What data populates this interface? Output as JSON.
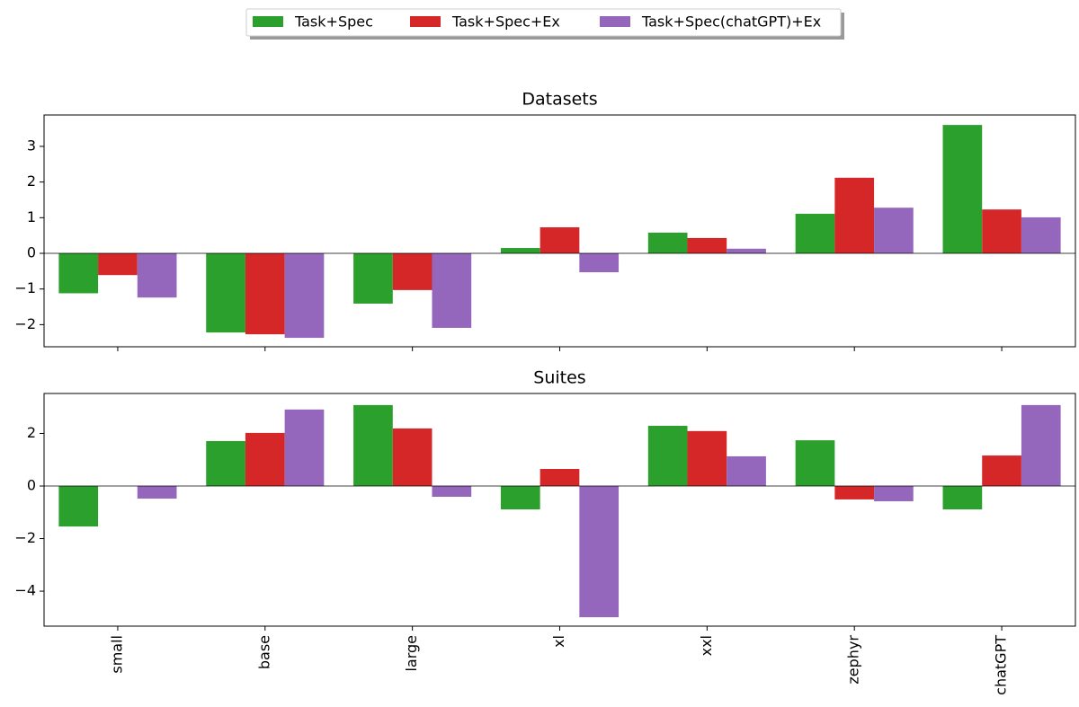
{
  "chart_data": [
    {
      "type": "bar",
      "title": "Datasets",
      "series": [
        {
          "name": "Task+Spec",
          "color": "#2ca02c",
          "values": [
            -1.12,
            -2.22,
            -1.41,
            0.15,
            0.58,
            1.11,
            3.6
          ]
        },
        {
          "name": "Task+Spec+Ex",
          "color": "#d62728",
          "values": [
            -0.61,
            -2.27,
            -1.03,
            0.73,
            0.43,
            2.12,
            1.23
          ]
        },
        {
          "name": "Task+Spec(chatGPT)+Ex",
          "color": "#9467bd",
          "values": [
            -1.24,
            -2.37,
            -2.09,
            -0.53,
            0.13,
            1.28,
            1.01
          ]
        }
      ],
      "ylim": [
        -2.62,
        3.88
      ],
      "yticks": [
        {
          "value": -2,
          "label": "−2"
        },
        {
          "value": -1,
          "label": "−1"
        },
        0,
        1,
        2,
        3
      ],
      "legend": "upper center"
    },
    {
      "type": "bar",
      "title": "Suites",
      "categories": [
        "small",
        "base",
        "large",
        "xl",
        "xxl",
        "zephyr",
        "chatGPT"
      ],
      "series": [
        {
          "color": "#2ca02c",
          "values": [
            -1.54,
            1.71,
            3.08,
            -0.89,
            2.29,
            1.74,
            -0.89
          ]
        },
        {
          "color": "#d62728",
          "values": [
            0.0,
            2.02,
            2.19,
            0.65,
            2.09,
            -0.51,
            1.16
          ]
        },
        {
          "color": "#9467bd",
          "values": [
            -0.48,
            2.91,
            -0.41,
            -4.99,
            1.13,
            -0.58,
            3.08
          ]
        }
      ],
      "ylim": [
        -5.33,
        3.52
      ],
      "yticks": [
        {
          "value": -4,
          "label": "−4"
        },
        {
          "value": -2,
          "label": "−2"
        },
        0,
        2
      ]
    }
  ]
}
